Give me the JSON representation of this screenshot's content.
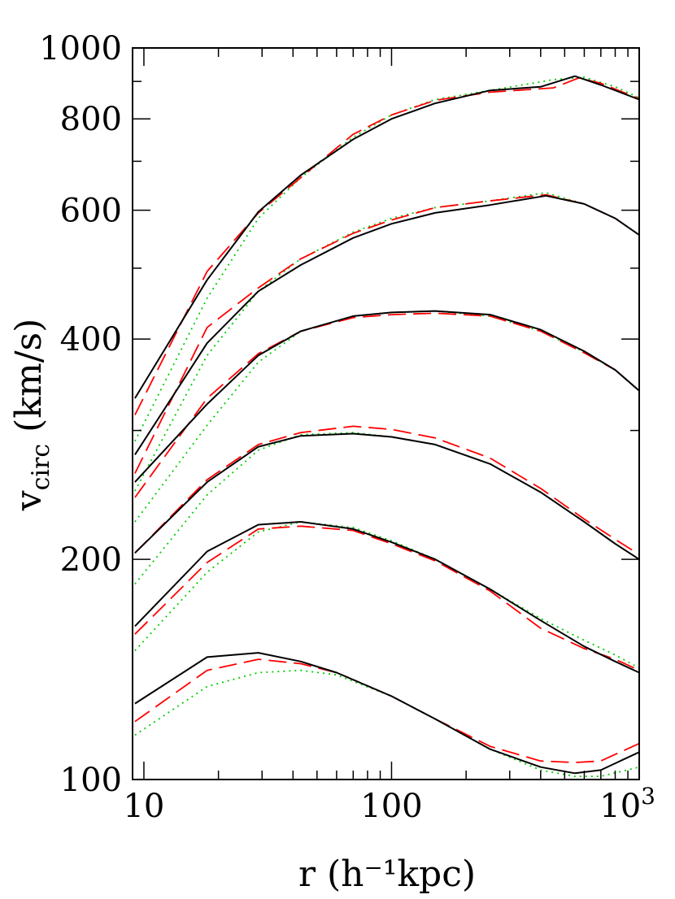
{
  "chart_data": {
    "type": "line",
    "xlabel": "r (h⁻¹kpc)",
    "ylabel": "v",
    "ylabel_sub": "circ",
    "ylabel_unit": "(km/s)",
    "x_scale": "log",
    "y_scale": "log",
    "xlim": [
      9.0,
      1000
    ],
    "ylim": [
      100,
      1000
    ],
    "grid": false,
    "legend": "none",
    "x_ticks": [
      {
        "value": 10,
        "label": "10"
      },
      {
        "value": 100,
        "label": "100"
      },
      {
        "value": 1000,
        "label": "10",
        "sup": "3"
      }
    ],
    "y_ticks": [
      {
        "value": 100,
        "label": "100"
      },
      {
        "value": 200,
        "label": "200"
      },
      {
        "value": 400,
        "label": "400"
      },
      {
        "value": 600,
        "label": "600"
      },
      {
        "value": 800,
        "label": "800"
      },
      {
        "value": 1000,
        "label": "1000"
      }
    ],
    "y_minor_ticks": [
      300,
      500,
      700,
      900
    ],
    "styles": [
      {
        "id": "solid",
        "color": "#000000",
        "dash": ""
      },
      {
        "id": "dashed",
        "color": "#ff0000",
        "dash": "22,9"
      },
      {
        "id": "dotted",
        "color": "#00cc00",
        "dash": "2,5"
      }
    ],
    "groups": [
      {
        "solid": [
          [
            9.2,
            332
          ],
          [
            18,
            482
          ],
          [
            29,
            597
          ],
          [
            43,
            670
          ],
          [
            70,
            750
          ],
          [
            100,
            800
          ],
          [
            150,
            840
          ],
          [
            250,
            875
          ],
          [
            400,
            885
          ],
          [
            550,
            915
          ],
          [
            700,
            890
          ],
          [
            1000,
            850
          ]
        ],
        "dashed": [
          [
            9.2,
            315
          ],
          [
            18,
            495
          ],
          [
            29,
            595
          ],
          [
            43,
            665
          ],
          [
            70,
            762
          ],
          [
            100,
            810
          ],
          [
            150,
            848
          ],
          [
            250,
            870
          ],
          [
            450,
            882
          ],
          [
            570,
            910
          ],
          [
            700,
            895
          ],
          [
            1000,
            852
          ]
        ],
        "dotted": [
          [
            9.2,
            290
          ],
          [
            18,
            455
          ],
          [
            29,
            585
          ],
          [
            43,
            665
          ],
          [
            70,
            755
          ],
          [
            100,
            810
          ],
          [
            150,
            850
          ],
          [
            250,
            875
          ],
          [
            450,
            905
          ],
          [
            600,
            912
          ],
          [
            800,
            885
          ],
          [
            1000,
            855
          ]
        ]
      },
      {
        "solid": [
          [
            9.2,
            278
          ],
          [
            18,
            395
          ],
          [
            29,
            465
          ],
          [
            43,
            505
          ],
          [
            70,
            550
          ],
          [
            100,
            575
          ],
          [
            150,
            595
          ],
          [
            250,
            610
          ],
          [
            420,
            628
          ],
          [
            600,
            612
          ],
          [
            800,
            585
          ],
          [
            1000,
            555
          ]
        ],
        "dashed": [
          [
            9.2,
            262
          ],
          [
            18,
            415
          ],
          [
            29,
            470
          ],
          [
            43,
            515
          ],
          [
            70,
            558
          ],
          [
            100,
            582
          ],
          [
            150,
            605
          ],
          [
            250,
            618
          ],
          [
            420,
            630
          ],
          [
            600,
            612
          ],
          [
            800,
            585
          ],
          [
            1000,
            555
          ]
        ],
        "dotted": [
          [
            9.2,
            248
          ],
          [
            18,
            380
          ],
          [
            29,
            465
          ],
          [
            43,
            515
          ],
          [
            70,
            560
          ],
          [
            100,
            585
          ],
          [
            150,
            605
          ],
          [
            250,
            618
          ],
          [
            420,
            634
          ],
          [
            600,
            612
          ],
          [
            800,
            585
          ],
          [
            1000,
            555
          ]
        ]
      },
      {
        "solid": [
          [
            9.2,
            255
          ],
          [
            18,
            326
          ],
          [
            29,
            380
          ],
          [
            43,
            410
          ],
          [
            70,
            430
          ],
          [
            100,
            435
          ],
          [
            150,
            437
          ],
          [
            250,
            432
          ],
          [
            400,
            412
          ],
          [
            600,
            385
          ],
          [
            800,
            363
          ],
          [
            1000,
            340
          ]
        ],
        "dashed": [
          [
            9.2,
            243
          ],
          [
            18,
            332
          ],
          [
            29,
            382
          ],
          [
            43,
            410
          ],
          [
            70,
            428
          ],
          [
            100,
            432
          ],
          [
            150,
            434
          ],
          [
            250,
            430
          ],
          [
            400,
            410
          ],
          [
            600,
            383
          ],
          [
            800,
            363
          ],
          [
            1000,
            340
          ]
        ],
        "dotted": [
          [
            9.2,
            225
          ],
          [
            18,
            305
          ],
          [
            29,
            372
          ],
          [
            43,
            410
          ],
          [
            70,
            430
          ],
          [
            100,
            435
          ],
          [
            150,
            437
          ],
          [
            250,
            430
          ],
          [
            400,
            410
          ],
          [
            600,
            384
          ],
          [
            800,
            363
          ],
          [
            1000,
            340
          ]
        ]
      },
      {
        "solid": [
          [
            9.2,
            204
          ],
          [
            18,
            255
          ],
          [
            29,
            285
          ],
          [
            43,
            295
          ],
          [
            70,
            297
          ],
          [
            100,
            294
          ],
          [
            150,
            287
          ],
          [
            250,
            270
          ],
          [
            400,
            247
          ],
          [
            600,
            225
          ],
          [
            800,
            210
          ],
          [
            1000,
            200
          ]
        ],
        "dashed": [
          [
            9.2,
            204
          ],
          [
            18,
            257
          ],
          [
            29,
            287
          ],
          [
            43,
            298
          ],
          [
            70,
            304
          ],
          [
            100,
            301
          ],
          [
            150,
            293
          ],
          [
            250,
            275
          ],
          [
            400,
            250
          ],
          [
            600,
            227
          ],
          [
            800,
            213
          ],
          [
            1000,
            203
          ]
        ],
        "dotted": [
          [
            9.2,
            185
          ],
          [
            18,
            245
          ],
          [
            29,
            282
          ],
          [
            43,
            296
          ],
          [
            70,
            298
          ],
          [
            100,
            294
          ],
          [
            150,
            287
          ],
          [
            250,
            270
          ],
          [
            400,
            247
          ],
          [
            600,
            225
          ],
          [
            800,
            210
          ],
          [
            1000,
            200
          ]
        ]
      },
      {
        "solid": [
          [
            9.2,
            162
          ],
          [
            18,
            205
          ],
          [
            29,
            223
          ],
          [
            43,
            225
          ],
          [
            70,
            220
          ],
          [
            100,
            211
          ],
          [
            150,
            200
          ],
          [
            250,
            182
          ],
          [
            400,
            165
          ],
          [
            600,
            152
          ],
          [
            800,
            145
          ],
          [
            1000,
            140
          ]
        ],
        "dashed": [
          [
            9.2,
            158
          ],
          [
            18,
            198
          ],
          [
            29,
            220
          ],
          [
            43,
            222
          ],
          [
            70,
            219
          ],
          [
            100,
            210
          ],
          [
            150,
            199
          ],
          [
            250,
            181
          ],
          [
            400,
            161
          ],
          [
            600,
            151
          ],
          [
            800,
            146
          ],
          [
            1000,
            141
          ]
        ],
        "dotted": [
          [
            9.2,
            150
          ],
          [
            18,
            192
          ],
          [
            29,
            218
          ],
          [
            43,
            225
          ],
          [
            70,
            221
          ],
          [
            100,
            212
          ],
          [
            150,
            200
          ],
          [
            250,
            182
          ],
          [
            400,
            166
          ],
          [
            600,
            155
          ],
          [
            800,
            148
          ],
          [
            1000,
            142
          ]
        ]
      },
      {
        "solid": [
          [
            9.2,
            127
          ],
          [
            18,
            147
          ],
          [
            29,
            149
          ],
          [
            43,
            145
          ],
          [
            60,
            140
          ],
          [
            100,
            130
          ],
          [
            150,
            121
          ],
          [
            250,
            110
          ],
          [
            400,
            104
          ],
          [
            550,
            102
          ],
          [
            700,
            103
          ],
          [
            1000,
            109
          ]
        ],
        "dashed": [
          [
            9.2,
            120
          ],
          [
            18,
            141
          ],
          [
            29,
            146
          ],
          [
            43,
            144
          ],
          [
            60,
            140
          ],
          [
            100,
            130
          ],
          [
            150,
            121
          ],
          [
            250,
            111
          ],
          [
            400,
            106
          ],
          [
            550,
            105.5
          ],
          [
            700,
            106
          ],
          [
            1000,
            112
          ]
        ],
        "dotted": [
          [
            9.2,
            115
          ],
          [
            18,
            134
          ],
          [
            29,
            140
          ],
          [
            43,
            141
          ],
          [
            60,
            139
          ],
          [
            100,
            130
          ],
          [
            150,
            121
          ],
          [
            250,
            110
          ],
          [
            400,
            103
          ],
          [
            550,
            101
          ],
          [
            700,
            101
          ],
          [
            1000,
            104
          ]
        ]
      }
    ]
  }
}
